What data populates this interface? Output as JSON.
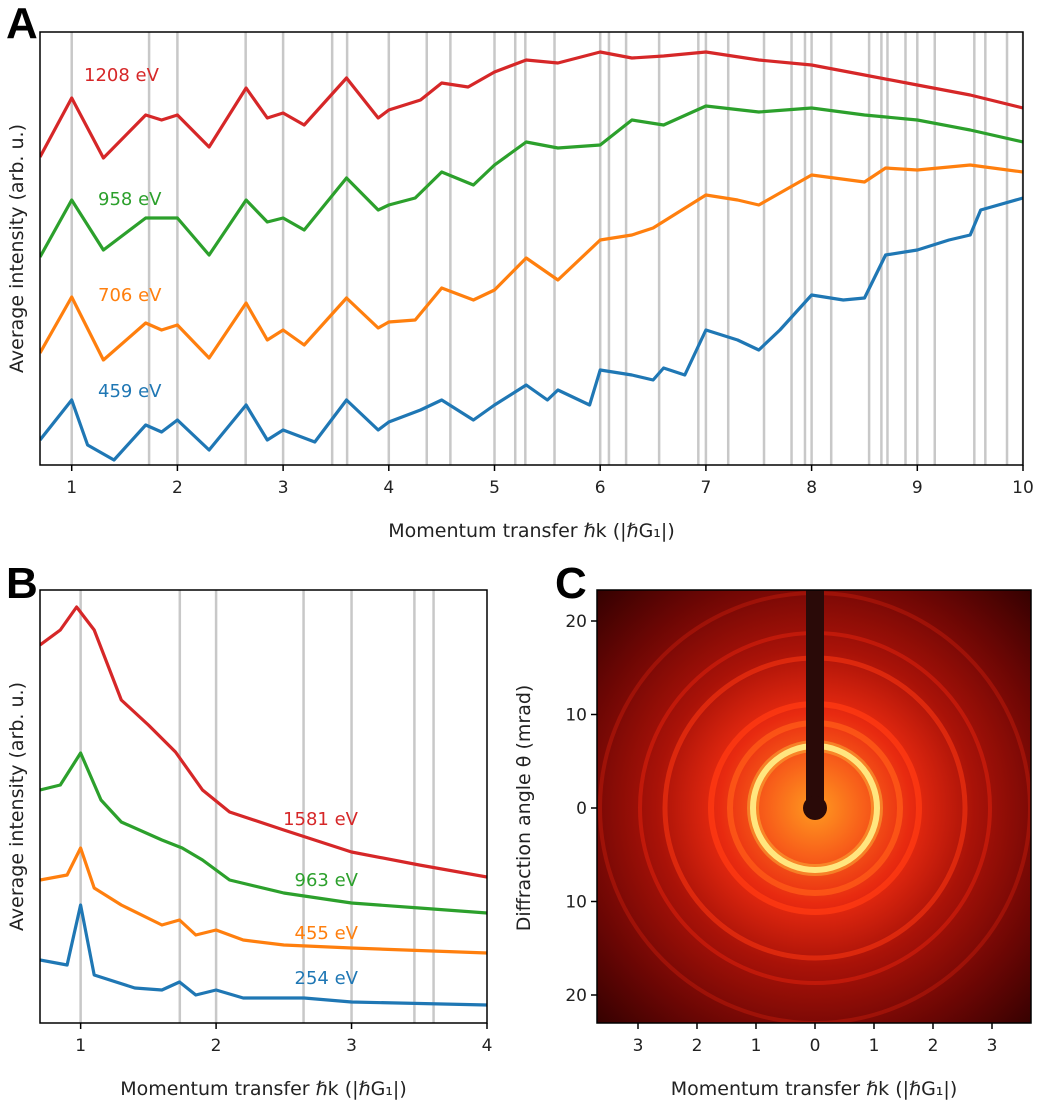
{
  "panels": {
    "a": "A",
    "b": "B",
    "c": "C"
  },
  "colors": {
    "red": "#d62728",
    "green": "#2ca02c",
    "orange": "#ff7f0e",
    "blue": "#1f77b4",
    "grid": "#c8c8c8"
  },
  "chart_data": [
    {
      "panel": "A",
      "type": "line",
      "xlabel": "Momentum transfer ℏk (|ℏG₁|)",
      "ylabel": "Average intensity (arb. u.)",
      "xlim": [
        0.7,
        10
      ],
      "ylim": [
        0,
        4.33
      ],
      "xticks": [
        "1",
        "2",
        "3",
        "4",
        "5",
        "6",
        "7",
        "8",
        "9",
        "10"
      ],
      "grid_lines_x_squared": [
        1,
        3,
        4,
        7,
        9,
        12,
        13,
        16,
        19,
        21,
        25,
        27,
        28,
        31,
        36,
        37,
        39,
        43,
        48,
        49,
        52,
        57,
        61,
        63,
        64,
        67,
        73,
        75,
        76,
        79,
        81,
        84,
        91,
        93,
        97,
        100
      ],
      "series": [
        {
          "name": "1208 eV",
          "color": "#d62728",
          "x": [
            0.7,
            1.0,
            1.3,
            1.7,
            1.85,
            2.0,
            2.3,
            2.65,
            2.85,
            3.0,
            3.2,
            3.6,
            3.9,
            4.0,
            4.3,
            4.5,
            4.75,
            5.0,
            5.3,
            5.6,
            6.0,
            6.3,
            6.6,
            7.0,
            7.5,
            8.0,
            8.5,
            9.0,
            9.5,
            10
          ],
          "y": [
            3.08,
            3.67,
            3.07,
            3.5,
            3.45,
            3.5,
            3.18,
            3.77,
            3.47,
            3.52,
            3.4,
            3.87,
            3.47,
            3.55,
            3.65,
            3.82,
            3.78,
            3.93,
            4.05,
            4.02,
            4.13,
            4.07,
            4.09,
            4.13,
            4.05,
            4.0,
            3.9,
            3.8,
            3.7,
            3.57
          ]
        },
        {
          "name": "958 eV",
          "color": "#2ca02c",
          "x": [
            0.7,
            1.0,
            1.3,
            1.7,
            2.0,
            2.3,
            2.65,
            2.85,
            3.0,
            3.2,
            3.6,
            3.9,
            4.0,
            4.25,
            4.5,
            4.8,
            5.0,
            5.3,
            5.6,
            6.0,
            6.3,
            6.6,
            7.0,
            7.5,
            8.0,
            8.5,
            9.0,
            9.5,
            10
          ],
          "y": [
            2.08,
            2.65,
            2.15,
            2.47,
            2.47,
            2.1,
            2.65,
            2.43,
            2.47,
            2.35,
            2.87,
            2.55,
            2.6,
            2.67,
            2.93,
            2.8,
            3.0,
            3.23,
            3.17,
            3.2,
            3.45,
            3.4,
            3.59,
            3.53,
            3.57,
            3.5,
            3.45,
            3.35,
            3.23
          ]
        },
        {
          "name": "706 eV",
          "color": "#ff7f0e",
          "x": [
            0.7,
            1.0,
            1.3,
            1.7,
            1.85,
            2.0,
            2.3,
            2.65,
            2.85,
            3.0,
            3.2,
            3.6,
            3.9,
            4.0,
            4.25,
            4.5,
            4.8,
            5.0,
            5.3,
            5.6,
            6.0,
            6.3,
            6.5,
            7.0,
            7.3,
            7.5,
            8.0,
            8.5,
            8.7,
            9.0,
            9.5,
            10
          ],
          "y": [
            1.12,
            1.68,
            1.05,
            1.42,
            1.35,
            1.4,
            1.07,
            1.62,
            1.25,
            1.35,
            1.2,
            1.67,
            1.37,
            1.43,
            1.45,
            1.77,
            1.65,
            1.75,
            2.07,
            1.85,
            2.25,
            2.3,
            2.37,
            2.7,
            2.65,
            2.6,
            2.9,
            2.83,
            2.97,
            2.95,
            3.0,
            2.93
          ]
        },
        {
          "name": "459 eV",
          "color": "#1f77b4",
          "x": [
            0.7,
            1.0,
            1.15,
            1.4,
            1.7,
            1.85,
            2.0,
            2.3,
            2.65,
            2.85,
            3.0,
            3.3,
            3.6,
            3.9,
            4.0,
            4.3,
            4.5,
            4.8,
            5.0,
            5.3,
            5.5,
            5.6,
            5.9,
            6.0,
            6.3,
            6.5,
            6.6,
            6.8,
            7.0,
            7.3,
            7.5,
            7.7,
            8.0,
            8.3,
            8.5,
            8.7,
            9.0,
            9.3,
            9.5,
            9.6,
            10
          ],
          "y": [
            0.25,
            0.65,
            0.2,
            0.05,
            0.4,
            0.33,
            0.45,
            0.15,
            0.6,
            0.25,
            0.35,
            0.23,
            0.65,
            0.35,
            0.43,
            0.55,
            0.65,
            0.45,
            0.6,
            0.8,
            0.65,
            0.75,
            0.6,
            0.95,
            0.9,
            0.85,
            0.97,
            0.9,
            1.35,
            1.25,
            1.15,
            1.35,
            1.7,
            1.65,
            1.67,
            2.1,
            2.15,
            2.25,
            2.3,
            2.55,
            2.67
          ]
        }
      ]
    },
    {
      "panel": "B",
      "type": "line",
      "xlabel": "Momentum transfer ℏk (|ℏG₁|)",
      "ylabel": "Average intensity (arb. u.)",
      "xlim": [
        0.7,
        4
      ],
      "ylim": [
        0,
        4.33
      ],
      "xticks": [
        "1",
        "2",
        "3",
        "4"
      ],
      "grid_lines_x_squared": [
        1,
        3,
        4,
        7,
        9,
        12,
        13
      ],
      "series": [
        {
          "name": "1581 eV",
          "color": "#d62728",
          "x": [
            0.7,
            0.85,
            0.97,
            1.1,
            1.3,
            1.5,
            1.7,
            1.9,
            2.1,
            2.5,
            3.0,
            3.5,
            4.0
          ],
          "y": [
            3.78,
            3.93,
            4.16,
            3.93,
            3.23,
            2.98,
            2.71,
            2.33,
            2.11,
            1.93,
            1.71,
            1.58,
            1.46
          ]
        },
        {
          "name": "963 eV",
          "color": "#2ca02c",
          "x": [
            0.7,
            0.85,
            1.0,
            1.15,
            1.3,
            1.6,
            1.75,
            1.9,
            2.1,
            2.5,
            3.0,
            3.5,
            4.0
          ],
          "y": [
            2.33,
            2.38,
            2.7,
            2.23,
            2.01,
            1.83,
            1.75,
            1.63,
            1.43,
            1.3,
            1.2,
            1.15,
            1.1
          ]
        },
        {
          "name": "455 eV",
          "color": "#ff7f0e",
          "x": [
            0.7,
            0.9,
            1.0,
            1.1,
            1.3,
            1.6,
            1.73,
            1.85,
            2.0,
            2.2,
            2.5,
            3.0,
            4.0
          ],
          "y": [
            1.43,
            1.48,
            1.75,
            1.35,
            1.18,
            0.98,
            1.03,
            0.88,
            0.93,
            0.83,
            0.78,
            0.75,
            0.7
          ]
        },
        {
          "name": "254 eV",
          "color": "#1f77b4",
          "x": [
            0.7,
            0.9,
            1.0,
            1.1,
            1.4,
            1.6,
            1.73,
            1.85,
            2.0,
            2.2,
            2.65,
            3.0,
            4.0
          ],
          "y": [
            0.63,
            0.58,
            1.18,
            0.48,
            0.35,
            0.33,
            0.41,
            0.28,
            0.33,
            0.25,
            0.25,
            0.21,
            0.18
          ]
        }
      ]
    },
    {
      "panel": "C",
      "type": "heatmap",
      "xlabel": "Momentum transfer ℏk (|ℏG₁|)",
      "ylabel": "Diffraction angle θ (mrad)",
      "xticks": [
        "3",
        "2",
        "1",
        "0",
        "1",
        "2",
        "3"
      ],
      "yticks": [
        "20",
        "10",
        "0",
        "10",
        "20"
      ]
    }
  ]
}
